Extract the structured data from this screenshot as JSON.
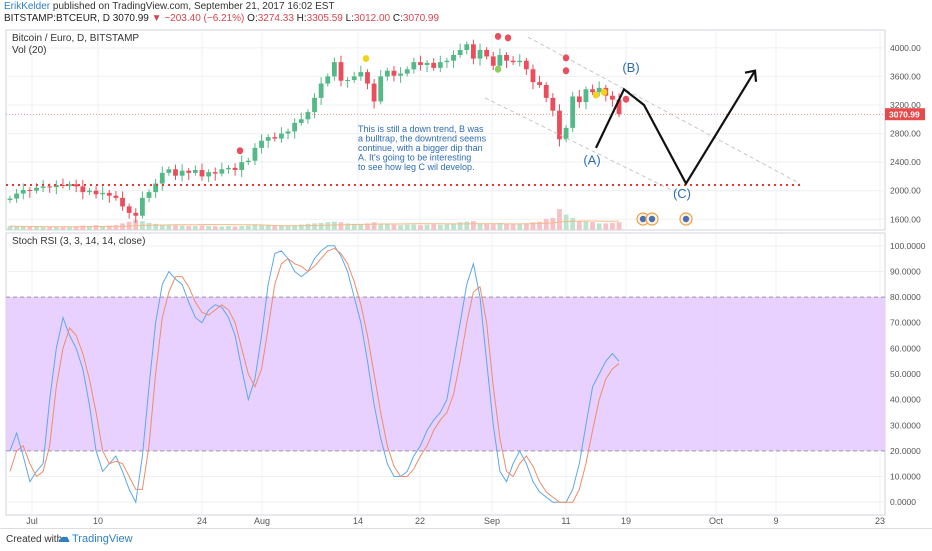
{
  "header": {
    "author": "ErikKelder",
    "published_text": "published on TradingView.com, September 21, 2017 16:02 EST",
    "symbol": "BITSTAMP:BTCEUR, D",
    "last": "3070.99",
    "change": "▼ −203.40 (−6.21%)",
    "o_label": "O:",
    "o_value": "3274.33",
    "h_label": "H:",
    "h_value": "3305.59",
    "l_label": "L:",
    "l_value": "3012.00",
    "c_label": "C:",
    "c_value": "3070.99"
  },
  "footer": {
    "created": "Created with",
    "brand": "TradingView"
  },
  "colors": {
    "up": "#53b987",
    "down": "#eb4d5c",
    "stoch_k": "#5fa8e8",
    "stoch_d": "#f08b6a",
    "band": "#e5ccff",
    "last_tag": "#e64a4a"
  },
  "chart_data": [
    {
      "type": "candlestick",
      "title": "Bitcoin / Euro, D, BITSTAMP",
      "indicator_label": "Vol (20)",
      "ylim": [
        1450,
        4250
      ],
      "y_ticks": [
        "4000.00",
        "3600.00",
        "3200.00",
        "2800.00",
        "2400.00",
        "2000.00",
        "1600.00"
      ],
      "last_price_label": "3070.99",
      "x_ticks": [
        "Jul",
        "10",
        "24",
        "Aug",
        "14",
        "22",
        "Sep",
        "11",
        "19",
        "Oct",
        "9",
        "23"
      ],
      "annotation": "This is still a down trend, B was a bulltrap, the downtrend seems continue, with a bigger dip than A. It's going to be interesting to see how leg C wil develop.",
      "wave_labels": [
        "(A)",
        "(B)",
        "(C)"
      ],
      "support_level": 2080,
      "close": [
        1890,
        1960,
        2010,
        2000,
        2040,
        2060,
        2050,
        2080,
        2070,
        2090,
        2060,
        1980,
        2000,
        1950,
        1970,
        1930,
        1900,
        1780,
        1690,
        1650,
        1900,
        1980,
        2100,
        2250,
        2300,
        2210,
        2280,
        2250,
        2290,
        2200,
        2260,
        2240,
        2300,
        2320,
        2290,
        2400,
        2420,
        2600,
        2700,
        2750,
        2730,
        2800,
        2830,
        2950,
        3000,
        3100,
        3300,
        3500,
        3600,
        3800,
        3540,
        3550,
        3600,
        3660,
        3500,
        3250,
        3600,
        3680,
        3610,
        3640,
        3700,
        3800,
        3760,
        3790,
        3720,
        3800,
        3820,
        3900,
        3970,
        4050,
        3850,
        3970,
        3880,
        3750,
        3900,
        3820,
        3800,
        3820,
        3700,
        3520,
        3480,
        3300,
        3120,
        2720,
        2880,
        3320,
        3240,
        3420,
        3380,
        3440,
        3330,
        3275,
        3071
      ],
      "open": [
        1870,
        1890,
        1960,
        2010,
        2000,
        2040,
        2060,
        2050,
        2080,
        2070,
        2090,
        2060,
        1980,
        2000,
        1950,
        1970,
        1930,
        1900,
        1780,
        1690,
        1650,
        1900,
        1980,
        2100,
        2250,
        2300,
        2210,
        2280,
        2250,
        2290,
        2200,
        2260,
        2240,
        2300,
        2320,
        2290,
        2400,
        2420,
        2600,
        2700,
        2750,
        2730,
        2800,
        2830,
        2950,
        3000,
        3100,
        3300,
        3500,
        3600,
        3800,
        3540,
        3550,
        3600,
        3660,
        3500,
        3250,
        3600,
        3680,
        3610,
        3640,
        3700,
        3800,
        3760,
        3790,
        3720,
        3800,
        3820,
        3900,
        3970,
        4050,
        3850,
        3970,
        3880,
        3750,
        3900,
        3820,
        3800,
        3820,
        3700,
        3520,
        3480,
        3300,
        3120,
        2720,
        2880,
        3320,
        3240,
        3420,
        3380,
        3440,
        3330,
        3274
      ],
      "volume": [
        0.18,
        0.16,
        0.15,
        0.14,
        0.16,
        0.13,
        0.14,
        0.15,
        0.12,
        0.13,
        0.15,
        0.2,
        0.18,
        0.22,
        0.18,
        0.2,
        0.22,
        0.3,
        0.38,
        0.45,
        0.4,
        0.32,
        0.28,
        0.25,
        0.22,
        0.22,
        0.2,
        0.18,
        0.18,
        0.2,
        0.18,
        0.17,
        0.16,
        0.18,
        0.16,
        0.18,
        0.2,
        0.25,
        0.22,
        0.2,
        0.18,
        0.18,
        0.2,
        0.22,
        0.25,
        0.28,
        0.3,
        0.32,
        0.35,
        0.38,
        0.35,
        0.3,
        0.28,
        0.25,
        0.3,
        0.35,
        0.28,
        0.26,
        0.24,
        0.22,
        0.24,
        0.25,
        0.22,
        0.24,
        0.26,
        0.24,
        0.25,
        0.3,
        0.35,
        0.38,
        0.4,
        0.3,
        0.28,
        0.26,
        0.32,
        0.28,
        0.26,
        0.27,
        0.3,
        0.35,
        0.38,
        0.5,
        0.55,
        0.95,
        0.7,
        0.55,
        0.4,
        0.38,
        0.36,
        0.3,
        0.3,
        0.32,
        0.35
      ]
    },
    {
      "type": "line",
      "title": "Stoch RSI (3, 3, 14, 14, close)",
      "ylim": [
        -5,
        105
      ],
      "y_ticks": [
        "100.0000",
        "90.0000",
        "80.0000",
        "70.0000",
        "60.0000",
        "50.0000",
        "40.0000",
        "30.0000",
        "20.0000",
        "10.0000",
        "0.0000"
      ],
      "band": [
        20,
        80
      ],
      "series": [
        {
          "values": [
            20,
            27,
            18,
            8,
            12,
            15,
            40,
            60,
            72,
            65,
            60,
            52,
            38,
            20,
            12,
            15,
            18,
            12,
            5,
            0,
            18,
            45,
            70,
            85,
            90,
            87,
            85,
            78,
            72,
            70,
            75,
            77,
            76,
            72,
            65,
            52,
            40,
            48,
            65,
            85,
            97,
            98,
            95,
            90,
            88,
            90,
            95,
            98,
            100,
            100,
            96,
            90,
            80,
            70,
            55,
            38,
            25,
            15,
            10,
            10,
            12,
            18,
            22,
            28,
            32,
            35,
            40,
            55,
            70,
            85,
            93,
            80,
            55,
            30,
            12,
            8,
            15,
            20,
            15,
            8,
            4,
            2,
            0,
            0,
            0,
            5,
            15,
            30,
            45,
            50,
            55,
            58,
            55
          ]
        },
        {
          "values": [
            12,
            20,
            22,
            15,
            10,
            12,
            22,
            45,
            60,
            68,
            65,
            58,
            48,
            35,
            20,
            15,
            16,
            15,
            10,
            5,
            5,
            22,
            50,
            72,
            82,
            88,
            88,
            84,
            78,
            74,
            73,
            75,
            77,
            75,
            70,
            60,
            50,
            45,
            52,
            68,
            85,
            93,
            95,
            93,
            92,
            90,
            92,
            95,
            98,
            99,
            97,
            93,
            86,
            77,
            65,
            50,
            35,
            22,
            14,
            10,
            10,
            13,
            18,
            22,
            28,
            32,
            35,
            42,
            55,
            70,
            82,
            84,
            70,
            45,
            25,
            12,
            10,
            15,
            18,
            14,
            8,
            4,
            2,
            0,
            0,
            0,
            5,
            15,
            28,
            40,
            48,
            52,
            54
          ]
        }
      ]
    }
  ]
}
